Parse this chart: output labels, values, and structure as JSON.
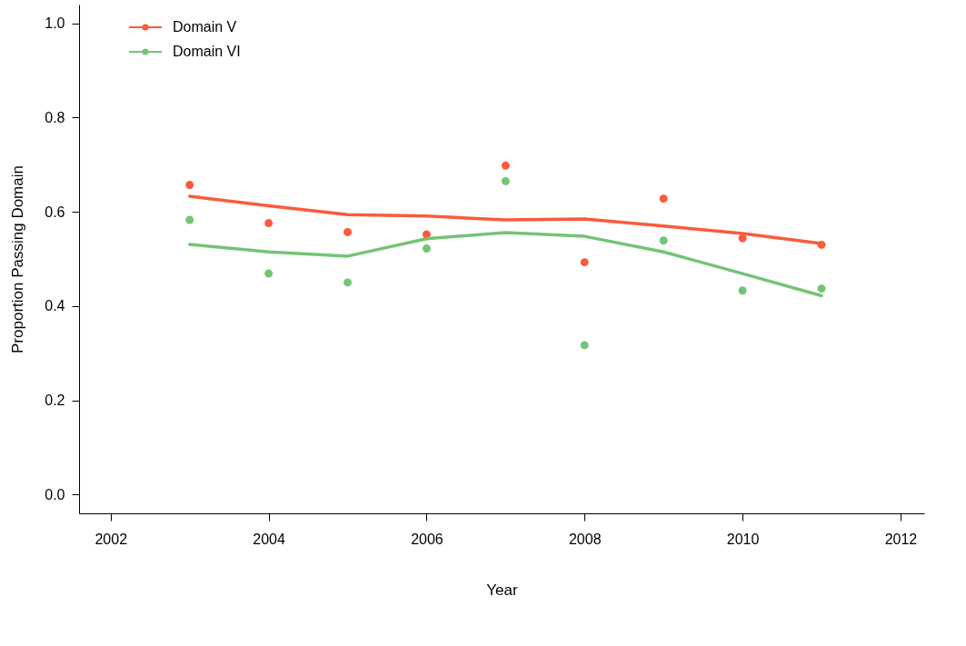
{
  "chart_data": {
    "type": "scatter",
    "xlabel": "Year",
    "ylabel": "Proportion Passing Domain",
    "xlim": [
      2001.6,
      2012.3
    ],
    "ylim": [
      -0.04,
      1.04
    ],
    "xticks": [
      2002,
      2004,
      2006,
      2008,
      2010,
      2012
    ],
    "yticks": [
      {
        "value": 0,
        "label": "0.0"
      },
      0.2,
      0.4,
      0.6,
      0.8,
      {
        "value": 1,
        "label": "1.0"
      }
    ],
    "grid": false,
    "legend": "top left",
    "marker": "circle",
    "series": [
      {
        "name": "Domain V",
        "color": "#fc5a3c",
        "x": [
          2003,
          2004,
          2005,
          2006,
          2007,
          2008,
          2009,
          2010,
          2011
        ],
        "values": [
          0.657,
          0.576,
          0.557,
          0.552,
          0.698,
          0.493,
          0.628,
          0.544,
          0.53
        ]
      },
      {
        "name": "Domain VI",
        "color": "#74c476",
        "x": [
          2003,
          2004,
          2005,
          2006,
          2007,
          2008,
          2009,
          2010,
          2011
        ],
        "values": [
          0.583,
          0.469,
          0.45,
          0.522,
          0.665,
          0.317,
          0.539,
          0.433,
          0.437
        ]
      },
      {
        "type": "line",
        "marker": "none",
        "color": "#fc5a3c",
        "x": [
          2003,
          2004,
          2005,
          2006,
          2007,
          2008,
          2009,
          2010,
          2011
        ],
        "values": [
          0.633,
          0.613,
          0.594,
          0.591,
          0.583,
          0.585,
          0.57,
          0.554,
          0.533
        ]
      },
      {
        "type": "line",
        "marker": "none",
        "color": "#74c476",
        "x": [
          2003,
          2004,
          2005,
          2006,
          2007,
          2008,
          2009,
          2010,
          2011
        ],
        "values": [
          0.531,
          0.515,
          0.506,
          0.543,
          0.556,
          0.548,
          0.515,
          0.469,
          0.422
        ]
      }
    ]
  }
}
